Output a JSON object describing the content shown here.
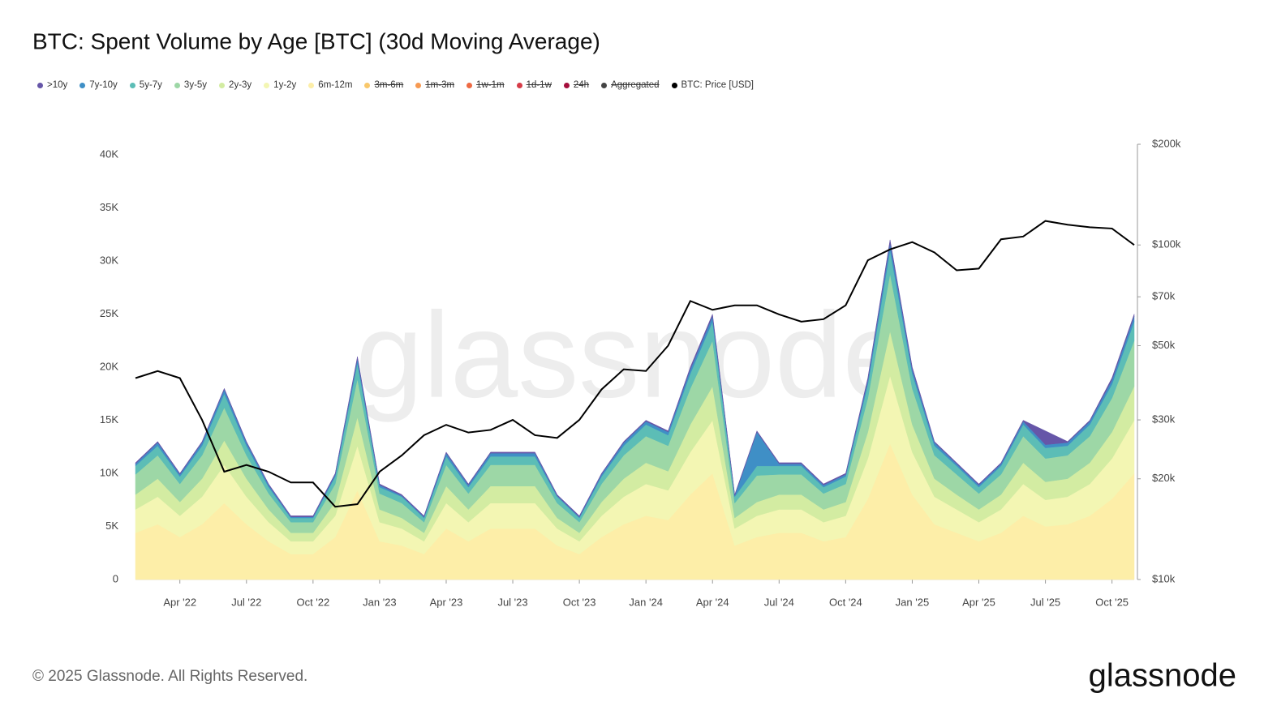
{
  "chart_data": {
    "type": "stacked_area",
    "title": "BTC: Spent Volume by Age [BTC] (30d Moving Average)",
    "watermark": "glassnode",
    "footer": "© 2025 Glassnode. All Rights Reserved.",
    "logo": "glassnode",
    "x": [
      "2022-02",
      "2022-03",
      "2022-04",
      "2022-05",
      "2022-06",
      "2022-07",
      "2022-08",
      "2022-09",
      "2022-10",
      "2022-11",
      "2022-12",
      "2023-01",
      "2023-02",
      "2023-03",
      "2023-04",
      "2023-05",
      "2023-06",
      "2023-07",
      "2023-08",
      "2023-09",
      "2023-10",
      "2023-11",
      "2023-12",
      "2024-01",
      "2024-02",
      "2024-03",
      "2024-04",
      "2024-05",
      "2024-06",
      "2024-07",
      "2024-08",
      "2024-09",
      "2024-10",
      "2024-11",
      "2024-12",
      "2025-01",
      "2025-02",
      "2025-03",
      "2025-04",
      "2025-05",
      "2025-06",
      "2025-07",
      "2025-08",
      "2025-09",
      "2025-10",
      "2025-11"
    ],
    "xlim": [
      "2022-02",
      "2025-11"
    ],
    "xticks": [
      {
        "value": "2022-04",
        "label": "Apr '22"
      },
      {
        "value": "2022-07",
        "label": "Jul '22"
      },
      {
        "value": "2022-10",
        "label": "Oct '22"
      },
      {
        "value": "2023-01",
        "label": "Jan '23"
      },
      {
        "value": "2023-04",
        "label": "Apr '23"
      },
      {
        "value": "2023-07",
        "label": "Jul '23"
      },
      {
        "value": "2023-10",
        "label": "Oct '23"
      },
      {
        "value": "2024-01",
        "label": "Jan '24"
      },
      {
        "value": "2024-04",
        "label": "Apr '24"
      },
      {
        "value": "2024-07",
        "label": "Jul '24"
      },
      {
        "value": "2024-10",
        "label": "Oct '24"
      },
      {
        "value": "2025-01",
        "label": "Jan '25"
      },
      {
        "value": "2025-04",
        "label": "Apr '25"
      },
      {
        "value": "2025-07",
        "label": "Jul '25"
      },
      {
        "value": "2025-10",
        "label": "Oct '25"
      }
    ],
    "ylim": [
      0,
      41000
    ],
    "yticks": [
      {
        "value": 0,
        "label": "0"
      },
      {
        "value": 5000,
        "label": "5K"
      },
      {
        "value": 10000,
        "label": "10K"
      },
      {
        "value": 15000,
        "label": "15K"
      },
      {
        "value": 20000,
        "label": "20K"
      },
      {
        "value": 25000,
        "label": "25K"
      },
      {
        "value": 30000,
        "label": "30K"
      },
      {
        "value": 35000,
        "label": "35K"
      },
      {
        "value": 40000,
        "label": "40K"
      }
    ],
    "y2lim": [
      10000,
      200000
    ],
    "y2scale": "log",
    "y2ticks": [
      {
        "value": 10000,
        "label": "$10k"
      },
      {
        "value": 20000,
        "label": "$20k"
      },
      {
        "value": 30000,
        "label": "$30k"
      },
      {
        "value": 50000,
        "label": "$50k"
      },
      {
        "value": 70000,
        "label": "$70k"
      },
      {
        "value": 100000,
        "label": "$100k"
      },
      {
        "value": 200000,
        "label": "$200k"
      }
    ],
    "series": [
      {
        "name": "6m-12m",
        "color": "#fdeea8",
        "values": [
          4400,
          5200,
          4000,
          5200,
          7200,
          5200,
          3600,
          2400,
          2400,
          4000,
          8400,
          3600,
          3200,
          2400,
          4800,
          3600,
          4800,
          4800,
          4800,
          3200,
          2400,
          4000,
          5200,
          6000,
          5600,
          8000,
          10000,
          3200,
          4000,
          4400,
          4400,
          3600,
          4000,
          7600,
          12800,
          8000,
          5200,
          4400,
          3600,
          4400,
          6000,
          5000,
          5200,
          6000,
          7600,
          10000
        ]
      },
      {
        "name": "1y-2y",
        "color": "#f3f6b3",
        "values": [
          2200,
          2600,
          2000,
          2600,
          3600,
          2600,
          1800,
          1200,
          1200,
          2000,
          4200,
          1800,
          1600,
          1200,
          2400,
          1800,
          2400,
          2400,
          2400,
          1600,
          1200,
          2000,
          2600,
          3000,
          2800,
          4000,
          5000,
          1600,
          2000,
          2200,
          2200,
          1800,
          2000,
          3800,
          6400,
          4000,
          2600,
          2200,
          1800,
          2200,
          3000,
          2500,
          2600,
          3000,
          3800,
          5000
        ]
      },
      {
        "name": "2y-3y",
        "color": "#d3eca2",
        "values": [
          1400,
          1700,
          1300,
          1700,
          2300,
          1700,
          1200,
          800,
          800,
          1300,
          2700,
          1200,
          1000,
          800,
          1600,
          1200,
          1600,
          1600,
          1600,
          1000,
          800,
          1300,
          1700,
          2000,
          1800,
          2600,
          3200,
          1000,
          1300,
          1400,
          1400,
          1200,
          1300,
          2500,
          4200,
          2600,
          1700,
          1400,
          1200,
          1400,
          2000,
          1700,
          1700,
          2000,
          2500,
          3200
        ]
      },
      {
        "name": "3y-5y",
        "color": "#9dd7a6",
        "values": [
          1900,
          2200,
          1700,
          2200,
          3100,
          2200,
          1500,
          1000,
          1000,
          1700,
          3600,
          1500,
          1400,
          1000,
          2000,
          1500,
          2000,
          2000,
          2000,
          1400,
          1000,
          1700,
          2200,
          2500,
          2400,
          3400,
          4300,
          1400,
          2500,
          1900,
          1900,
          1500,
          1700,
          3200,
          5400,
          3400,
          2200,
          1900,
          1500,
          1900,
          2500,
          2200,
          2200,
          2500,
          3200,
          4300
        ]
      },
      {
        "name": "5y-7y",
        "color": "#5cbdb6",
        "values": [
          800,
          900,
          700,
          900,
          1300,
          900,
          600,
          400,
          400,
          700,
          1500,
          600,
          600,
          400,
          800,
          600,
          800,
          800,
          800,
          600,
          400,
          700,
          900,
          1100,
          1000,
          1400,
          1800,
          600,
          900,
          800,
          800,
          600,
          700,
          1300,
          2200,
          1400,
          900,
          800,
          600,
          800,
          1100,
          1000,
          900,
          1100,
          1300,
          1800
        ]
      },
      {
        "name": "7y-10y",
        "color": "#3f8fc6",
        "values": [
          200,
          300,
          200,
          300,
          400,
          300,
          200,
          100,
          100,
          200,
          400,
          200,
          100,
          100,
          300,
          200,
          300,
          300,
          300,
          100,
          100,
          200,
          300,
          300,
          300,
          400,
          500,
          100,
          3200,
          200,
          200,
          200,
          200,
          400,
          700,
          400,
          300,
          200,
          200,
          200,
          300,
          300,
          300,
          300,
          400,
          500
        ]
      },
      {
        "name": ">10y",
        "color": "#6656a8",
        "values": [
          100,
          100,
          100,
          100,
          100,
          100,
          100,
          100,
          100,
          100,
          200,
          100,
          100,
          100,
          100,
          100,
          100,
          100,
          100,
          100,
          100,
          100,
          100,
          100,
          100,
          200,
          200,
          100,
          100,
          100,
          100,
          100,
          100,
          200,
          300,
          200,
          100,
          100,
          100,
          100,
          100,
          1300,
          100,
          100,
          200,
          200
        ]
      },
      {
        "name": "BTC: Price [USD]",
        "color": "#000000",
        "axis": "y2",
        "values": [
          40000,
          42000,
          40000,
          30000,
          21000,
          22000,
          21000,
          19500,
          19500,
          16500,
          16800,
          21000,
          23500,
          27000,
          29000,
          27500,
          28000,
          30000,
          27000,
          26500,
          30000,
          37000,
          42500,
          42000,
          50000,
          68000,
          64000,
          66000,
          66000,
          62000,
          59000,
          60000,
          66000,
          90000,
          97000,
          102000,
          95000,
          84000,
          85000,
          104000,
          106000,
          118000,
          115000,
          113000,
          112000,
          100000
        ]
      }
    ],
    "hidden_series": [
      {
        "name": "3m-6m",
        "color": "#f9c86b"
      },
      {
        "name": "1m-3m",
        "color": "#f79a52"
      },
      {
        "name": "1w-1m",
        "color": "#ee6a43"
      },
      {
        "name": "1d-1w",
        "color": "#d63c48"
      },
      {
        "name": "24h",
        "color": "#a50f3c"
      },
      {
        "name": "Aggregated",
        "color": "#444444"
      }
    ]
  }
}
